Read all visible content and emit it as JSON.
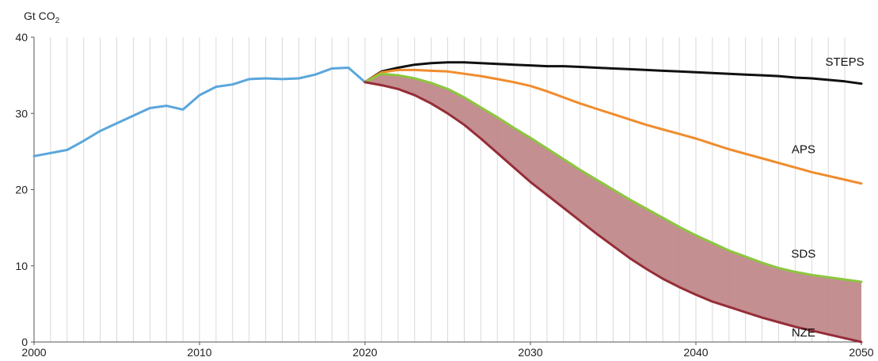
{
  "chart_data": {
    "type": "line",
    "ylabel": "Gt CO",
    "ylabel_sub": "2",
    "xlim": [
      2000,
      2050
    ],
    "ylim": [
      0,
      40
    ],
    "x_ticks": [
      2000,
      2010,
      2020,
      2030,
      2040,
      2050
    ],
    "y_ticks": [
      0,
      10,
      20,
      30,
      40
    ],
    "grid": "vertical-yearly",
    "shaded_band": {
      "between": [
        "SDS",
        "NZE"
      ],
      "color": "#c0898b"
    },
    "series": [
      {
        "id": "historical",
        "color": "#5aa6dc",
        "x": [
          2000,
          2001,
          2002,
          2003,
          2004,
          2005,
          2006,
          2007,
          2008,
          2009,
          2010,
          2011,
          2012,
          2013,
          2014,
          2015,
          2016,
          2017,
          2018,
          2019,
          2020
        ],
        "values": [
          24.4,
          24.8,
          25.2,
          26.4,
          27.7,
          28.7,
          29.7,
          30.7,
          31.0,
          30.5,
          32.4,
          33.5,
          33.8,
          34.5,
          34.6,
          34.5,
          34.6,
          35.1,
          35.9,
          36.0,
          34.1
        ]
      },
      {
        "name": "STEPS",
        "color": "#111111",
        "x": [
          2020,
          2021,
          2022,
          2023,
          2024,
          2025,
          2026,
          2027,
          2028,
          2029,
          2030,
          2031,
          2032,
          2033,
          2034,
          2035,
          2036,
          2037,
          2038,
          2039,
          2040,
          2041,
          2042,
          2043,
          2044,
          2045,
          2046,
          2047,
          2048,
          2049,
          2050
        ],
        "values": [
          34.1,
          35.5,
          36.0,
          36.4,
          36.6,
          36.7,
          36.7,
          36.6,
          36.5,
          36.4,
          36.3,
          36.2,
          36.2,
          36.1,
          36.0,
          35.9,
          35.8,
          35.7,
          35.6,
          35.5,
          35.4,
          35.3,
          35.2,
          35.1,
          35.0,
          34.9,
          34.7,
          34.6,
          34.4,
          34.2,
          33.9
        ]
      },
      {
        "name": "APS",
        "color": "#f08c2d",
        "x": [
          2020,
          2021,
          2022,
          2023,
          2024,
          2025,
          2026,
          2027,
          2028,
          2029,
          2030,
          2031,
          2032,
          2033,
          2034,
          2035,
          2036,
          2037,
          2038,
          2039,
          2040,
          2041,
          2042,
          2043,
          2044,
          2045,
          2046,
          2047,
          2048,
          2049,
          2050
        ],
        "values": [
          34.1,
          35.4,
          35.7,
          35.7,
          35.6,
          35.5,
          35.2,
          34.9,
          34.5,
          34.1,
          33.6,
          32.9,
          32.1,
          31.3,
          30.6,
          29.9,
          29.2,
          28.5,
          27.9,
          27.3,
          26.7,
          26.0,
          25.3,
          24.7,
          24.1,
          23.5,
          22.9,
          22.3,
          21.8,
          21.3,
          20.8
        ]
      },
      {
        "name": "SDS",
        "color": "#8cc63f",
        "x": [
          2020,
          2021,
          2022,
          2023,
          2024,
          2025,
          2026,
          2027,
          2028,
          2029,
          2030,
          2031,
          2032,
          2033,
          2034,
          2035,
          2036,
          2037,
          2038,
          2039,
          2040,
          2041,
          2042,
          2043,
          2044,
          2045,
          2046,
          2047,
          2048,
          2049,
          2050
        ],
        "values": [
          34.1,
          35.2,
          35.0,
          34.6,
          34.0,
          33.2,
          32.1,
          30.8,
          29.5,
          28.1,
          26.8,
          25.4,
          24.0,
          22.6,
          21.3,
          20.0,
          18.7,
          17.5,
          16.3,
          15.1,
          14.0,
          13.0,
          12.0,
          11.2,
          10.4,
          9.7,
          9.2,
          8.8,
          8.5,
          8.2,
          7.9
        ]
      },
      {
        "name": "NZE",
        "color": "#962d37",
        "x": [
          2020,
          2021,
          2022,
          2023,
          2024,
          2025,
          2026,
          2027,
          2028,
          2029,
          2030,
          2031,
          2032,
          2033,
          2034,
          2035,
          2036,
          2037,
          2038,
          2039,
          2040,
          2041,
          2042,
          2043,
          2044,
          2045,
          2046,
          2047,
          2048,
          2049,
          2050
        ],
        "values": [
          34.1,
          33.7,
          33.2,
          32.4,
          31.3,
          30.0,
          28.5,
          26.7,
          24.8,
          22.9,
          21.0,
          19.3,
          17.6,
          15.9,
          14.2,
          12.6,
          11.0,
          9.6,
          8.3,
          7.2,
          6.2,
          5.3,
          4.6,
          3.9,
          3.2,
          2.6,
          2.0,
          1.5,
          1.0,
          0.5,
          0.0
        ]
      }
    ]
  }
}
